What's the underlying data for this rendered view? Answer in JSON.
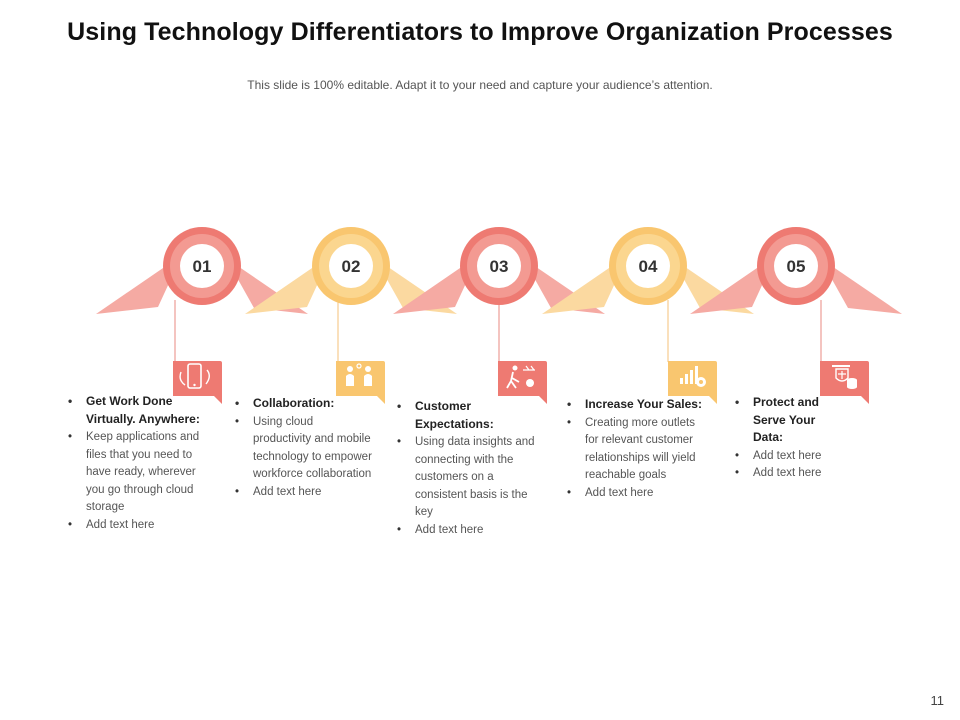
{
  "slide": {
    "title": "Using Technology Differentiators to Improve Organization Processes",
    "subtitle": "This slide is 100% editable. Adapt it to your need and capture your audience’s attention.",
    "page_number": "11"
  },
  "colors": {
    "red": "#ee7a72",
    "orange": "#f9c66f",
    "pale_red": "#f5aaa3",
    "pale_orange": "#fbd9a0"
  },
  "steps": [
    {
      "number": "01",
      "icon": "mobile-sync-icon",
      "heading": "Get Work Done Virtually. Anywhere:",
      "points": [
        "Keep applications and files that you need to have ready, wherever you go through cloud storage",
        "Add text here"
      ]
    },
    {
      "number": "02",
      "icon": "collaboration-icon",
      "heading": "Collaboration:",
      "points": [
        "Using cloud productivity and mobile technology to empower workforce collaboration",
        "Add text here"
      ]
    },
    {
      "number": "03",
      "icon": "customer-goal-icon",
      "heading": "Customer Expectations:",
      "points": [
        "Using data insights and connecting with the customers on a consistent basis is the key",
        "Add text here"
      ]
    },
    {
      "number": "04",
      "icon": "sales-growth-icon",
      "heading": "Increase Your Sales:",
      "points": [
        "Creating more outlets for relevant customer relationships will yield reachable goals",
        "Add text here"
      ]
    },
    {
      "number": "05",
      "icon": "data-protection-icon",
      "heading": "Protect and Serve Your Data:",
      "points": [
        "Add text here",
        "Add text here"
      ]
    }
  ]
}
